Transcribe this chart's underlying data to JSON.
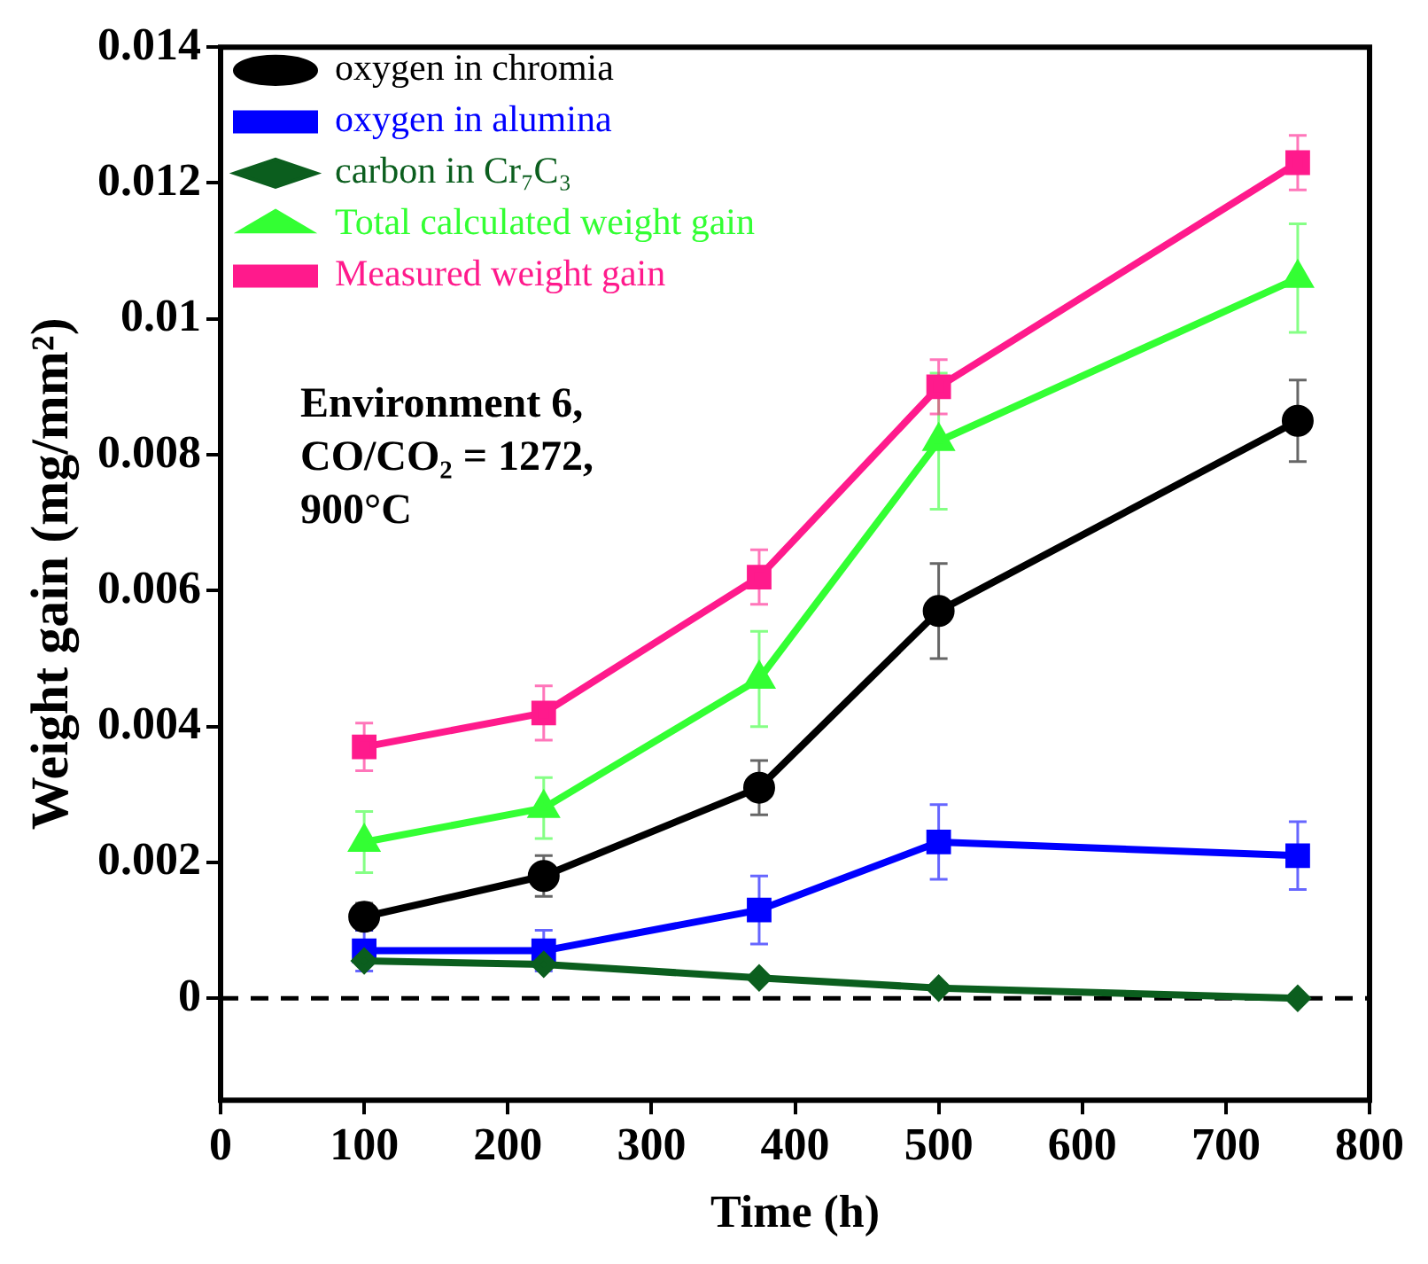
{
  "chart_data": {
    "type": "line",
    "xlabel": "Time (h)",
    "ylabel": "Weight gain (mg/mm²)",
    "x": [
      100,
      225,
      375,
      500,
      750
    ],
    "series": [
      {
        "name": "oxygen in chromia",
        "color": "#000000",
        "marker": "circle",
        "values": [
          0.0012,
          0.0018,
          0.0031,
          0.0057,
          0.0085
        ],
        "errors": [
          0.0002,
          0.0003,
          0.0004,
          0.0007,
          0.0006
        ]
      },
      {
        "name": "oxygen in alumina",
        "color": "#0000ff",
        "marker": "square",
        "values": [
          0.0007,
          0.0007,
          0.0013,
          0.0023,
          0.0021
        ],
        "errors": [
          0.0003,
          0.0003,
          0.0005,
          0.00055,
          0.0005
        ]
      },
      {
        "name": "carbon in Cr₇C₃",
        "color": "#0b5e1e",
        "marker": "diamond",
        "values": [
          0.00055,
          0.0005,
          0.0003,
          0.00015,
          0.0
        ]
      },
      {
        "name": "Total calculated weight gain",
        "color": "#33ff33",
        "marker": "triangle",
        "values": [
          0.0023,
          0.0028,
          0.0047,
          0.0082,
          0.0106
        ],
        "errors": [
          0.00045,
          0.00045,
          0.0007,
          0.001,
          0.0008
        ]
      },
      {
        "name": "Measured weight gain",
        "color": "#ff1a8c",
        "marker": "square",
        "values": [
          0.0037,
          0.0042,
          0.0062,
          0.009,
          0.0123
        ],
        "errors": [
          0.00035,
          0.0004,
          0.0004,
          0.0004,
          0.0004
        ]
      }
    ],
    "xlim": [
      0,
      800
    ],
    "xticks": [
      0,
      100,
      200,
      300,
      400,
      500,
      600,
      700,
      800
    ],
    "ylim": [
      -0.0015,
      0.014
    ],
    "yticks": [
      0,
      0.002,
      0.004,
      0.006,
      0.008,
      0.01,
      0.012,
      0.014
    ],
    "ref_lines": [
      {
        "axis": "y",
        "value": 0,
        "color": "#000000",
        "line_style": "dashed"
      }
    ],
    "annotations": [
      "Environment 6,\nCO/CO₂ = 1272,\n900°C"
    ],
    "legend": "top left",
    "line_style": "solid",
    "grid": false
  }
}
